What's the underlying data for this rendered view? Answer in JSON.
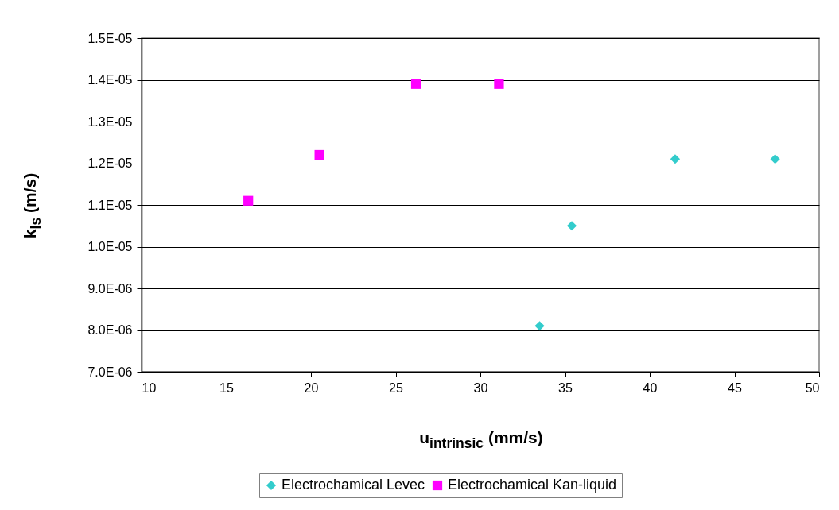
{
  "chart_data": {
    "type": "scatter",
    "xlabel": "u$_{intrinsic}$ (mm/s)",
    "ylabel": "k$_{ls}$ (m/s)",
    "xlim": [
      10,
      50
    ],
    "xticks": [
      10,
      15,
      20,
      25,
      30,
      35,
      40,
      45,
      50
    ],
    "ylim": [
      7e-06,
      1.5e-05
    ],
    "yticks": [
      {
        "value": 7e-06,
        "label": "7.0E-06"
      },
      {
        "value": 8e-06,
        "label": "8.0E-06"
      },
      {
        "value": 9e-06,
        "label": "9.0E-06"
      },
      {
        "value": 1e-05,
        "label": "1.0E-05"
      },
      {
        "value": 1.1e-05,
        "label": "1.1E-05"
      },
      {
        "value": 1.2e-05,
        "label": "1.2E-05"
      },
      {
        "value": 1.3e-05,
        "label": "1.3E-05"
      },
      {
        "value": 1.4e-05,
        "label": "1.4E-05"
      },
      {
        "value": 1.5e-05,
        "label": "1.5E-05"
      }
    ],
    "grid": "y",
    "legend": "bottom",
    "series": [
      {
        "name": "Electrochamical Levec",
        "color": "#33cccc",
        "marker": "diamond",
        "x": [
          33.5,
          35.4,
          41.5,
          47.4
        ],
        "values": [
          8.1e-06,
          1.05e-05,
          1.21e-05,
          1.21e-05
        ]
      },
      {
        "name": "Electrochamical Kan-liquid",
        "color": "#ff00ff",
        "marker": "square",
        "x": [
          16.3,
          20.5,
          26.2,
          31.1
        ],
        "values": [
          1.11e-05,
          1.22e-05,
          1.39e-05,
          1.39e-05
        ]
      }
    ]
  }
}
